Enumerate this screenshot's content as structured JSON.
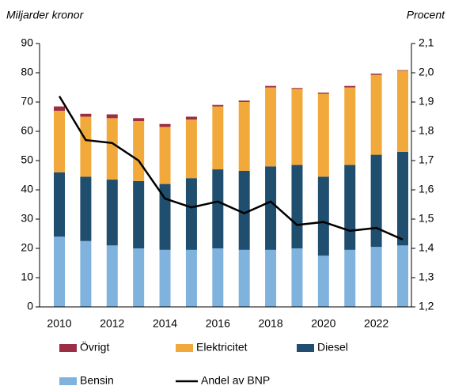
{
  "chart_data": {
    "type": "bar",
    "stacked": true,
    "y_label": "Miljarder kronor",
    "y2_label": "Procent",
    "categories": [
      "2010",
      null,
      "2012",
      null,
      "2014",
      null,
      "2016",
      null,
      "2018",
      null,
      "2020",
      null,
      "2022",
      null
    ],
    "series": [
      {
        "name": "Övrigt",
        "color": "#9b2d45",
        "values": [
          1.5,
          1,
          1.3,
          1,
          1,
          1,
          0.5,
          0.5,
          0.5,
          0.3,
          0.4,
          0.5,
          0.4,
          0.2
        ]
      },
      {
        "name": "Elektricitet",
        "color": "#f2a93b",
        "values": [
          21,
          20.5,
          21,
          20.5,
          19.5,
          20,
          21.5,
          23.5,
          27,
          26,
          28.3,
          26.5,
          27.3,
          27.7
        ]
      },
      {
        "name": "Diesel",
        "color": "#1f4e6e",
        "values": [
          22,
          22,
          22.5,
          23,
          22.5,
          24.5,
          27,
          27,
          28.5,
          28.5,
          27,
          29,
          31.5,
          32
        ]
      },
      {
        "name": "Bensin",
        "color": "#7fb3de",
        "values": [
          24,
          22.5,
          21,
          20,
          19.5,
          19.5,
          20,
          19.5,
          19.5,
          20,
          17.5,
          19.5,
          20.5,
          21
        ]
      },
      {
        "name": "Andel av BNP",
        "color": "#000000",
        "type": "line",
        "axis": "y2",
        "values": [
          1.92,
          1.77,
          1.76,
          1.7,
          1.57,
          1.54,
          1.56,
          1.52,
          1.56,
          1.48,
          1.49,
          1.46,
          1.47,
          1.43
        ]
      }
    ],
    "ylim": [
      0,
      90
    ],
    "yticks": [
      0,
      10,
      20,
      30,
      40,
      50,
      60,
      70,
      80,
      90
    ],
    "y2lim": [
      1.2,
      2.1
    ],
    "y2ticks": [
      {
        "value": 1.2,
        "label": "1,2"
      },
      {
        "value": 1.3,
        "label": "1,3"
      },
      {
        "value": 1.4,
        "label": "1,4"
      },
      {
        "value": 1.5,
        "label": "1,5"
      },
      {
        "value": 1.6,
        "label": "1,6"
      },
      {
        "value": 1.7,
        "label": "1,7"
      },
      {
        "value": 1.8,
        "label": "1,8"
      },
      {
        "value": 1.9,
        "label": "1,9"
      },
      {
        "value": 2.0,
        "label": "2,0"
      },
      {
        "value": 2.1,
        "label": "2,1"
      }
    ]
  }
}
